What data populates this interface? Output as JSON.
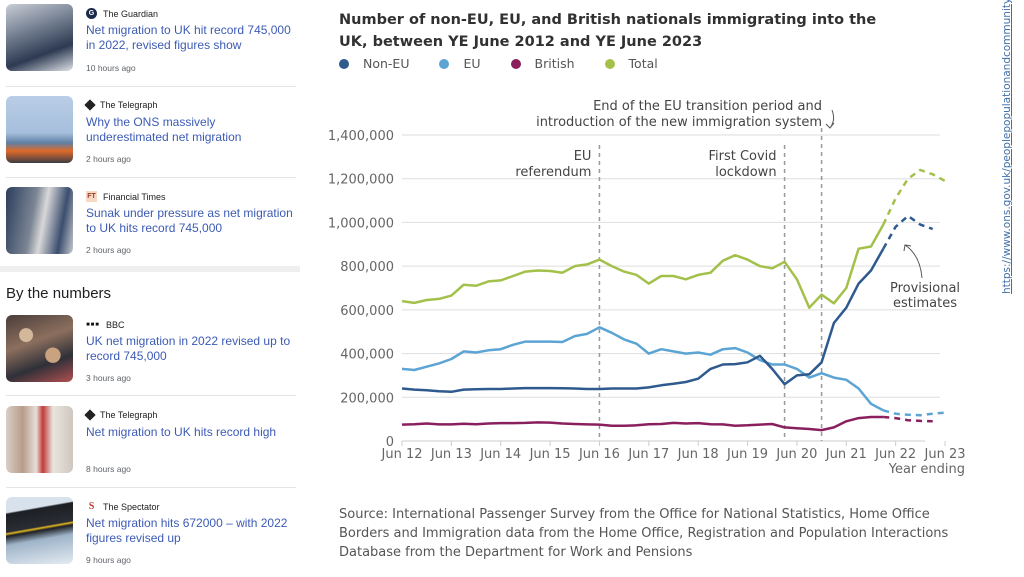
{
  "news": {
    "articles": [
      {
        "source": "The Guardian",
        "source_icon": "guardian-logo-icon",
        "headline": "Net migration to UK hit record 745,000 in 2022, revised figures show",
        "time": "10 hours ago",
        "thumb": "passport-control-image"
      },
      {
        "source": "The Telegraph",
        "source_icon": "telegraph-logo-icon",
        "headline": "Why the ONS massively underestimated net migration",
        "time": "2 hours ago",
        "thumb": "small-boat-image"
      },
      {
        "source": "Financial Times",
        "source_icon": "ft-logo-icon",
        "headline": "Sunak under pressure as net migration to UK hits record 745,000",
        "time": "2 hours ago",
        "thumb": "queue-image"
      }
    ],
    "section_title": "By the numbers",
    "numbers_articles": [
      {
        "source": "BBC",
        "source_icon": "bbc-logo-icon",
        "headline": "UK net migration in 2022 revised up to record 745,000",
        "time": "3 hours ago",
        "thumb": "crowd-image"
      },
      {
        "source": "The Telegraph",
        "source_icon": "telegraph-logo-icon",
        "headline": "Net migration to UK hits record high",
        "time": "8 hours ago",
        "thumb": "travellers-image"
      },
      {
        "source": "The Spectator",
        "source_icon": "spectator-logo-icon",
        "headline": "Net migration hits 672000 – with 2022 figures revised up",
        "time": "9 hours ago",
        "thumb": "departures-sign-image"
      }
    ]
  },
  "source_note": "Source: International Passenger Survey from the Office for National Statistics, Home Office Borders and Immigration data from the Home Office, Registration and Population Interactions Database from the Department for Work and Pensions",
  "url": "https://www.ons.gov.uk/peoplepopulationandcommunity/populationandmigration/internationalmigration/bulletins/longterminternationalmigrationprovisional/yearendingjune2023",
  "chart_data": {
    "type": "line",
    "title": "Number of non-EU, EU, and British nationals immigrating into the UK, between YE June 2012 and YE June 2023",
    "xlabel": "Year ending",
    "ylabel": "",
    "ylim": [
      0,
      1400000
    ],
    "yticks": [
      0,
      200000,
      400000,
      600000,
      800000,
      1000000,
      1200000,
      1400000
    ],
    "ytick_labels": [
      "0",
      "200,000",
      "400,000",
      "600,000",
      "800,000",
      "1,000,000",
      "1,200,000",
      "1,400,000"
    ],
    "xticks": [
      "Jun 12",
      "Jun 13",
      "Jun 14",
      "Jun 15",
      "Jun 16",
      "Jun 17",
      "Jun 18",
      "Jun 19",
      "Jun 20",
      "Jun 21",
      "Jun 22",
      "Jun 23"
    ],
    "x_start_year": 2012.5,
    "x_step": "quarter",
    "grid": true,
    "legend_position": "top-left",
    "provisional_from_index": 39,
    "series": [
      {
        "name": "Non-EU",
        "color": "#2e5a8e",
        "values": [
          240000,
          235000,
          232000,
          228000,
          225000,
          235000,
          237000,
          238000,
          238000,
          240000,
          242000,
          242000,
          242000,
          241000,
          240000,
          238000,
          238000,
          240000,
          240000,
          240000,
          245000,
          255000,
          262000,
          270000,
          285000,
          330000,
          350000,
          352000,
          360000,
          390000,
          330000,
          260000,
          300000,
          305000,
          360000,
          540000,
          610000,
          720000,
          780000,
          880000,
          980000,
          1030000,
          990000,
          970000,
          null
        ]
      },
      {
        "name": "EU",
        "color": "#5ba4d4",
        "values": [
          330000,
          325000,
          340000,
          355000,
          375000,
          410000,
          405000,
          415000,
          420000,
          440000,
          455000,
          455000,
          455000,
          453000,
          480000,
          490000,
          520000,
          495000,
          465000,
          445000,
          400000,
          420000,
          410000,
          400000,
          405000,
          395000,
          420000,
          425000,
          405000,
          370000,
          350000,
          350000,
          330000,
          290000,
          310000,
          290000,
          280000,
          240000,
          170000,
          140000,
          125000,
          120000,
          118000,
          125000,
          130000
        ]
      },
      {
        "name": "British",
        "color": "#8a1f5e",
        "values": [
          75000,
          77000,
          80000,
          76000,
          76000,
          79000,
          77000,
          80000,
          82000,
          82000,
          83000,
          85000,
          84000,
          80000,
          78000,
          76000,
          75000,
          70000,
          70000,
          72000,
          77000,
          78000,
          83000,
          80000,
          82000,
          77000,
          76000,
          70000,
          72000,
          75000,
          78000,
          62000,
          58000,
          55000,
          50000,
          62000,
          90000,
          105000,
          110000,
          110000,
          105000,
          95000,
          92000,
          90000,
          null
        ]
      },
      {
        "name": "Total",
        "color": "#a3c14a",
        "values": [
          640000,
          632000,
          645000,
          650000,
          665000,
          715000,
          710000,
          730000,
          735000,
          755000,
          775000,
          780000,
          778000,
          770000,
          800000,
          808000,
          830000,
          800000,
          775000,
          760000,
          720000,
          755000,
          755000,
          740000,
          760000,
          770000,
          825000,
          850000,
          830000,
          800000,
          790000,
          820000,
          740000,
          610000,
          670000,
          630000,
          700000,
          880000,
          890000,
          990000,
          1110000,
          1200000,
          1240000,
          1220000,
          1190000
        ]
      }
    ],
    "annotations": [
      {
        "text": "EU referendum",
        "x": "Jun 16"
      },
      {
        "text": "First Covid lockdown",
        "x": "Mar 20"
      },
      {
        "text": "End of the EU transition period and introduction of the new immigration system",
        "x": "Dec 20"
      },
      {
        "text": "Provisional estimates"
      }
    ]
  }
}
